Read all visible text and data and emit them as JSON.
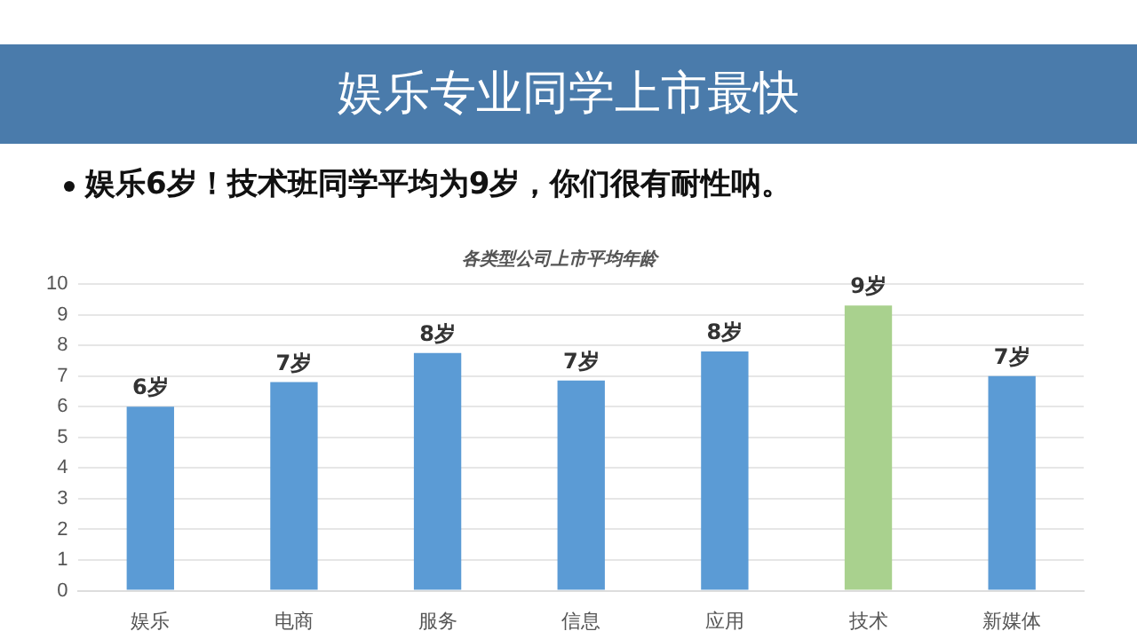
{
  "chart_data": {
    "type": "bar",
    "title": "娱乐专业同学上市最快",
    "subtitle": "娱乐6岁！技术班同学平均为9岁，你们很有耐性呐。",
    "annotations": [
      "各类型公司上市平均年龄"
    ],
    "categories": [
      "娱乐",
      "电商",
      "服务",
      "信息",
      "应用",
      "技术",
      "新媒体"
    ],
    "values": [
      6.0,
      6.8,
      7.75,
      6.85,
      7.8,
      9.3,
      7.0
    ],
    "colors": [
      "#5b9bd5",
      "#5b9bd5",
      "#5b9bd5",
      "#5b9bd5",
      "#5b9bd5",
      "#a9d18e",
      "#5b9bd5"
    ],
    "value_labels": [
      "6岁",
      "7岁",
      "8岁",
      "7岁",
      "8岁",
      "9岁",
      "7岁"
    ],
    "ylim": [
      0,
      10
    ],
    "yticks": [
      0,
      1,
      2,
      3,
      4,
      5,
      6,
      7,
      8,
      9,
      10
    ],
    "grid": "y",
    "legend": false
  }
}
